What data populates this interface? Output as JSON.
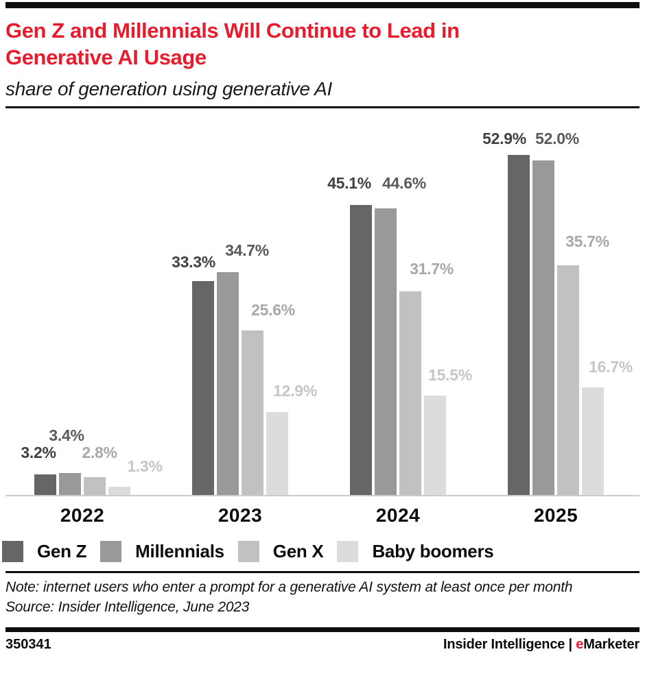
{
  "header": {
    "title": "Gen Z and Millennials Will Continue to Lead in\nGenerative AI Usage",
    "subtitle": "share of generation using generative AI",
    "title_color": "#e81c2c"
  },
  "chart_data": {
    "type": "bar",
    "title": "Gen Z and Millennials Will Continue to Lead in Generative AI Usage",
    "subtitle": "share of generation using generative AI",
    "categories": [
      "2022",
      "2023",
      "2024",
      "2025"
    ],
    "series": [
      {
        "name": "Gen Z",
        "color": "#666667",
        "label_color": "#414042",
        "values": [
          3.2,
          33.3,
          45.1,
          52.9
        ],
        "label_dx": [
          -10,
          -14,
          -17,
          -21
        ],
        "label_dy": [
          24,
          20,
          24,
          16
        ]
      },
      {
        "name": "Millennials",
        "color": "#999999",
        "label_color": "#58595b",
        "values": [
          3.4,
          34.7,
          44.6,
          52.0
        ],
        "label_dx": [
          -5,
          28,
          27,
          20
        ],
        "label_dy": [
          47,
          24,
          29,
          24
        ]
      },
      {
        "name": "Gen X",
        "color": "#c1c1c2",
        "label_color": "#a7a8aa",
        "values": [
          2.8,
          25.6,
          31.7,
          35.7
        ],
        "label_dx": [
          7,
          30,
          31,
          28
        ],
        "label_dy": [
          28,
          22,
          25,
          27
        ]
      },
      {
        "name": "Baby boomers",
        "color": "#dcdcdd",
        "label_color": "#c5c6c8",
        "values": [
          1.3,
          12.9,
          15.5,
          16.7
        ],
        "label_dx": [
          37,
          26,
          22,
          26
        ],
        "label_dy": [
          22,
          23,
          22,
          22
        ]
      }
    ],
    "value_suffix": "%",
    "value_decimals": 1,
    "ylim": [
      0,
      56
    ],
    "grid": false,
    "axis_line_color": "#cbcbcb",
    "legend_position": "bottom"
  },
  "footnote": {
    "note": "Note: internet users who enter a prompt for a generative AI system at least once per month",
    "source": "Source: Insider Intelligence, June 2023"
  },
  "footer": {
    "chart_id": "350341",
    "brand_left": "Insider Intelligence",
    "brand_separator": " | ",
    "brand_e": "e",
    "brand_rest": "Marketer",
    "brand_e_color": "#e81c2c"
  }
}
